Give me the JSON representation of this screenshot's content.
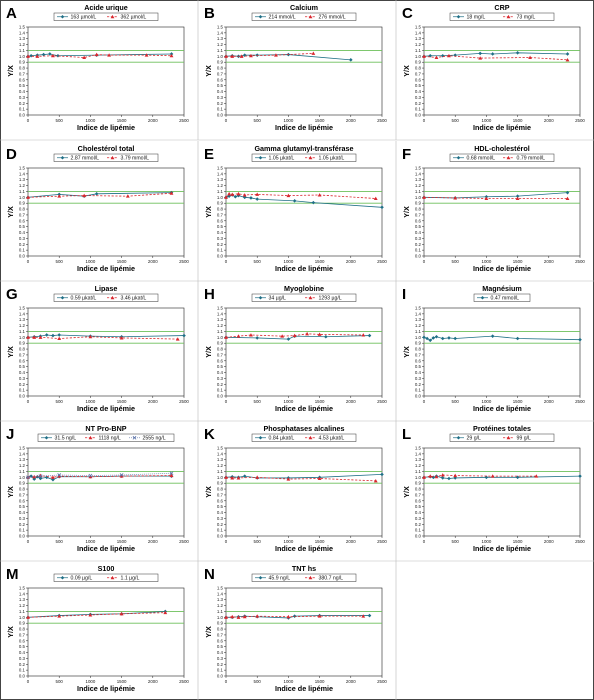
{
  "figure": {
    "xlabel": "Indice de lipémie",
    "ylabel": "Y/X",
    "grid": false,
    "reference_lines": [
      0.9,
      1.1
    ],
    "reference_color": "#6cbf5a",
    "colors": {
      "solid": "#1f6f86",
      "dashed": "#d9262d",
      "dotted": "#5a72a8"
    },
    "xticks": [
      0,
      500,
      1000,
      1500,
      2000,
      2500
    ],
    "yticks": [
      0,
      0.1,
      0.2,
      0.3,
      0.4,
      0.5,
      0.6,
      0.7,
      0.8,
      0.9,
      1.0,
      1.1,
      1.2,
      1.3,
      1.4,
      1.5
    ]
  },
  "chart_data": [
    {
      "id": "A",
      "type": "line",
      "title": "Acide urique",
      "xlabel": "Indice de lipémie",
      "ylabel": "Y/X",
      "xlim": [
        0,
        2500
      ],
      "ylim": [
        0,
        1.5
      ],
      "legend": "top",
      "series": [
        {
          "name": "163 µmol/L",
          "style": "solid",
          "marker": "diamond",
          "x": [
            0,
            50,
            150,
            250,
            350,
            480,
            1100,
            2300
          ],
          "y": [
            1.0,
            1.01,
            1.02,
            1.03,
            1.04,
            1.01,
            1.02,
            1.04
          ]
        },
        {
          "name": "362 µmol/L",
          "style": "dashed",
          "marker": "triangle",
          "x": [
            0,
            150,
            400,
            900,
            1100,
            1300,
            1900,
            2300
          ],
          "y": [
            1.0,
            1.0,
            1.01,
            0.98,
            1.03,
            1.02,
            1.02,
            1.01
          ]
        }
      ]
    },
    {
      "id": "B",
      "type": "line",
      "title": "Calcium",
      "xlabel": "Indice de lipémie",
      "ylabel": "Y/X",
      "xlim": [
        0,
        2500
      ],
      "ylim": [
        0,
        1.5
      ],
      "legend": "top",
      "series": [
        {
          "name": "214 mmol/L",
          "style": "solid",
          "marker": "diamond",
          "x": [
            0,
            100,
            200,
            300,
            500,
            1000,
            2000
          ],
          "y": [
            1.0,
            1.01,
            1.0,
            1.02,
            1.02,
            1.03,
            0.94
          ]
        },
        {
          "name": "276 mmol/L",
          "style": "dashed",
          "marker": "triangle",
          "x": [
            0,
            100,
            250,
            400,
            800,
            1400
          ],
          "y": [
            1.0,
            1.0,
            1.0,
            1.01,
            1.02,
            1.05
          ]
        }
      ]
    },
    {
      "id": "C",
      "type": "line",
      "title": "CRP",
      "xlabel": "Indice de lipémie",
      "ylabel": "Y/X",
      "xlim": [
        0,
        2500
      ],
      "ylim": [
        0,
        1.5
      ],
      "legend": "top",
      "series": [
        {
          "name": "18 mg/L",
          "style": "solid",
          "marker": "diamond",
          "x": [
            0,
            100,
            300,
            500,
            900,
            1100,
            1500,
            2300
          ],
          "y": [
            1.0,
            1.01,
            1.01,
            1.02,
            1.05,
            1.04,
            1.06,
            1.04
          ]
        },
        {
          "name": "73 mg/L",
          "style": "dashed",
          "marker": "triangle",
          "x": [
            0,
            200,
            400,
            900,
            1700,
            2300
          ],
          "y": [
            1.0,
            0.98,
            1.01,
            0.97,
            0.98,
            0.94
          ]
        }
      ]
    },
    {
      "id": "D",
      "type": "line",
      "title": "Cholestérol total",
      "xlabel": "Indice de lipémie",
      "ylabel": "Y/X",
      "xlim": [
        0,
        2500
      ],
      "ylim": [
        0,
        1.5
      ],
      "legend": "top",
      "series": [
        {
          "name": "2.87 mmol/L",
          "style": "solid",
          "marker": "diamond",
          "x": [
            0,
            500,
            900,
            1100,
            2300
          ],
          "y": [
            1.0,
            1.05,
            1.02,
            1.06,
            1.08
          ]
        },
        {
          "name": "3.79 mmol/L",
          "style": "dashed",
          "marker": "triangle",
          "x": [
            0,
            500,
            900,
            1600,
            2300
          ],
          "y": [
            1.0,
            1.02,
            1.03,
            1.02,
            1.07
          ]
        }
      ]
    },
    {
      "id": "E",
      "type": "line",
      "title": "Gamma glutamyl-transférase",
      "xlabel": "Indice de lipémie",
      "ylabel": "Y/X",
      "xlim": [
        0,
        2500
      ],
      "ylim": [
        0,
        1.5
      ],
      "legend": "top",
      "series": [
        {
          "name": "1.05 µkat/L",
          "style": "solid",
          "marker": "diamond",
          "x": [
            0,
            50,
            100,
            150,
            200,
            300,
            400,
            500,
            1100,
            1400,
            2500
          ],
          "y": [
            1.0,
            1.02,
            1.04,
            1.01,
            1.03,
            1.0,
            0.99,
            0.97,
            0.94,
            0.91,
            0.83
          ]
        },
        {
          "name": "1.05 µkat/L",
          "style": "dashed",
          "marker": "triangle",
          "x": [
            0,
            50,
            100,
            200,
            300,
            500,
            1000,
            1500,
            2400
          ],
          "y": [
            1.0,
            1.06,
            1.05,
            1.06,
            1.04,
            1.05,
            1.03,
            1.04,
            0.98
          ]
        }
      ]
    },
    {
      "id": "F",
      "type": "line",
      "title": "HDL-cholestérol",
      "xlabel": "Indice de lipémie",
      "ylabel": "Y/X",
      "xlim": [
        0,
        2500
      ],
      "ylim": [
        0,
        1.5
      ],
      "legend": "top",
      "series": [
        {
          "name": "0.68 mmol/L",
          "style": "solid",
          "marker": "diamond",
          "x": [
            0,
            500,
            1000,
            1500,
            2300
          ],
          "y": [
            1.0,
            0.99,
            1.01,
            1.02,
            1.08
          ]
        },
        {
          "name": "0.79 mmol/L",
          "style": "dashed",
          "marker": "triangle",
          "x": [
            0,
            500,
            1000,
            1500,
            2300
          ],
          "y": [
            1.0,
            0.99,
            0.98,
            0.98,
            0.98
          ]
        }
      ]
    },
    {
      "id": "G",
      "type": "line",
      "title": "Lipase",
      "xlabel": "Indice de lipémie",
      "ylabel": "Y/X",
      "xlim": [
        0,
        2500
      ],
      "ylim": [
        0,
        1.5
      ],
      "legend": "top",
      "series": [
        {
          "name": "0.59 µkat/L",
          "style": "solid",
          "marker": "diamond",
          "x": [
            0,
            100,
            200,
            300,
            400,
            500,
            1000,
            1500,
            2500
          ],
          "y": [
            1.0,
            1.01,
            1.02,
            1.04,
            1.03,
            1.04,
            1.02,
            1.01,
            1.03
          ]
        },
        {
          "name": "3.46 µkat/L",
          "style": "dashed",
          "marker": "triangle",
          "x": [
            0,
            100,
            200,
            500,
            1000,
            1500,
            2400
          ],
          "y": [
            1.0,
            1.0,
            1.0,
            0.98,
            1.01,
            0.99,
            0.97
          ]
        }
      ]
    },
    {
      "id": "H",
      "type": "line",
      "title": "Myoglobine",
      "xlabel": "Indice de lipémie",
      "ylabel": "Y/X",
      "xlim": [
        0,
        2500
      ],
      "ylim": [
        0,
        1.5
      ],
      "legend": "top",
      "series": [
        {
          "name": "34 µg/L",
          "style": "solid",
          "marker": "diamond",
          "x": [
            0,
            500,
            1000,
            1100,
            1600,
            2300
          ],
          "y": [
            1.0,
            0.99,
            0.97,
            1.02,
            1.01,
            1.03
          ]
        },
        {
          "name": "1293 µg/L",
          "style": "dashed",
          "marker": "triangle",
          "x": [
            0,
            200,
            400,
            900,
            1100,
            1300,
            1500,
            2200
          ],
          "y": [
            1.0,
            1.02,
            1.04,
            1.02,
            1.03,
            1.06,
            1.05,
            1.04
          ]
        }
      ]
    },
    {
      "id": "I",
      "type": "line",
      "title": "Magnésium",
      "xlabel": "Indice de lipémie",
      "ylabel": "Y/X",
      "xlim": [
        0,
        2500
      ],
      "ylim": [
        0,
        1.5
      ],
      "legend": "top",
      "series": [
        {
          "name": "0.47 mmol/L",
          "style": "solid",
          "marker": "diamond",
          "x": [
            0,
            50,
            100,
            150,
            200,
            300,
            400,
            500,
            1100,
            1500,
            2500
          ],
          "y": [
            1.0,
            0.98,
            0.95,
            0.99,
            1.01,
            0.98,
            0.99,
            0.98,
            1.02,
            0.98,
            0.96
          ]
        }
      ]
    },
    {
      "id": "J",
      "type": "line",
      "title": "NT Pro-BNP",
      "xlabel": "Indice de lipémie",
      "ylabel": "Y/X",
      "xlim": [
        0,
        2500
      ],
      "ylim": [
        0,
        1.5
      ],
      "legend": "top",
      "series": [
        {
          "name": "31.5 ng/L",
          "style": "solid",
          "marker": "diamond",
          "x": [
            0,
            50,
            100,
            150,
            200,
            300,
            400,
            500,
            1000,
            1500,
            2300
          ],
          "y": [
            1.0,
            1.02,
            0.97,
            1.01,
            0.98,
            1.0,
            0.96,
            1.01,
            1.01,
            1.02,
            1.02
          ]
        },
        {
          "name": "1118 ng/L",
          "style": "dashed",
          "marker": "triangle",
          "x": [
            0,
            100,
            200,
            400,
            500,
            1000,
            1500,
            2300
          ],
          "y": [
            1.0,
            1.01,
            1.03,
            1.0,
            1.02,
            1.01,
            1.02,
            1.03
          ]
        },
        {
          "name": "2555 ng/L",
          "style": "dotted",
          "marker": "x",
          "x": [
            0,
            200,
            500,
            1000,
            1500,
            2300
          ],
          "y": [
            1.0,
            1.02,
            1.04,
            1.03,
            1.04,
            1.07
          ]
        }
      ]
    },
    {
      "id": "K",
      "type": "line",
      "title": "Phosphatases alcalines",
      "xlabel": "Indice de lipémie",
      "ylabel": "Y/X",
      "xlim": [
        0,
        2500
      ],
      "ylim": [
        0,
        1.5
      ],
      "legend": "top",
      "series": [
        {
          "name": "0.84 µkat/L",
          "style": "solid",
          "marker": "diamond",
          "x": [
            0,
            100,
            200,
            300,
            500,
            1000,
            1500,
            2500
          ],
          "y": [
            1.0,
            1.01,
            1.0,
            1.02,
            0.99,
            0.99,
            1.0,
            1.05
          ]
        },
        {
          "name": "4.53 µkat/L",
          "style": "dashed",
          "marker": "triangle",
          "x": [
            0,
            100,
            200,
            500,
            1000,
            1500,
            2400
          ],
          "y": [
            1.0,
            0.99,
            0.99,
            1.0,
            0.97,
            0.98,
            0.94
          ]
        }
      ]
    },
    {
      "id": "L",
      "type": "line",
      "title": "Protéines totales",
      "xlabel": "Indice de lipémie",
      "ylabel": "Y/X",
      "xlim": [
        0,
        2500
      ],
      "ylim": [
        0,
        1.5
      ],
      "legend": "top",
      "series": [
        {
          "name": "29 g/L",
          "style": "solid",
          "marker": "diamond",
          "x": [
            0,
            100,
            150,
            200,
            300,
            400,
            500,
            1000,
            1500,
            2500
          ],
          "y": [
            1.0,
            1.01,
            1.0,
            1.02,
            0.99,
            0.98,
            0.99,
            1.0,
            1.0,
            1.02
          ]
        },
        {
          "name": "99 g/L",
          "style": "dashed",
          "marker": "triangle",
          "x": [
            0,
            100,
            200,
            300,
            500,
            1100,
            1800
          ],
          "y": [
            1.0,
            1.02,
            1.01,
            1.04,
            1.03,
            1.02,
            1.02
          ]
        }
      ]
    },
    {
      "id": "M",
      "type": "line",
      "title": "S100",
      "xlabel": "Indice de lipémie",
      "ylabel": "Y/X",
      "xlim": [
        0,
        2500
      ],
      "ylim": [
        0,
        1.5
      ],
      "legend": "top",
      "series": [
        {
          "name": "0.09 µg/L",
          "style": "solid",
          "marker": "diamond",
          "x": [
            0,
            500,
            1000,
            1500,
            2200
          ],
          "y": [
            1.0,
            1.03,
            1.05,
            1.06,
            1.1
          ]
        },
        {
          "name": "1.1 µg/L",
          "style": "dashed",
          "marker": "triangle",
          "x": [
            0,
            500,
            1000,
            1500,
            2200
          ],
          "y": [
            1.0,
            1.02,
            1.04,
            1.06,
            1.08
          ]
        }
      ]
    },
    {
      "id": "N",
      "type": "line",
      "title": "TNT hs",
      "xlabel": "Indice de lipémie",
      "ylabel": "Y/X",
      "xlim": [
        0,
        2500
      ],
      "ylim": [
        0,
        1.5
      ],
      "legend": "top",
      "series": [
        {
          "name": "45.9 ng/L",
          "style": "solid",
          "marker": "diamond",
          "x": [
            0,
            100,
            200,
            300,
            500,
            1000,
            1100,
            1500,
            2300
          ],
          "y": [
            1.0,
            1.0,
            1.01,
            1.02,
            1.01,
            0.99,
            1.02,
            1.03,
            1.03
          ]
        },
        {
          "name": "380.7 ng/L",
          "style": "dashed",
          "marker": "triangle",
          "x": [
            0,
            100,
            200,
            300,
            500,
            1000,
            1500,
            2200
          ],
          "y": [
            1.0,
            1.01,
            1.0,
            1.01,
            1.02,
            1.01,
            1.02,
            1.02
          ]
        }
      ]
    }
  ]
}
